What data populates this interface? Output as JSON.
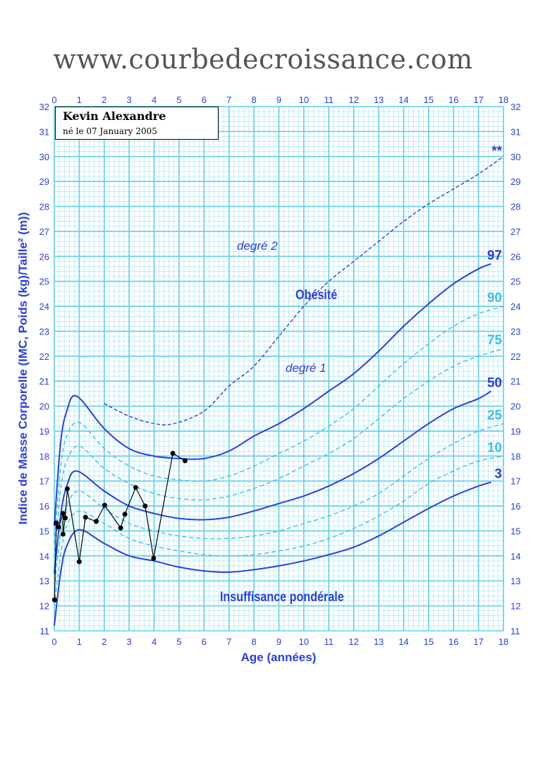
{
  "header": {
    "site": "www.courbedecroissance.com"
  },
  "patient": {
    "name": "Kevin Alexandre",
    "birth": "né le 07 January 2005"
  },
  "colors": {
    "main_curve": "#2a3fe0",
    "dashed_curve": "#3fbde8",
    "grid": "#5fcdee",
    "patient_line": "#000000"
  },
  "chart_data": {
    "type": "line",
    "xlabel": "Age (années)",
    "ylabel": "Indice de Masse Corporelle (IMC, Poids (kg)/Taille² (m))",
    "xlim": [
      0,
      18
    ],
    "ylim": [
      11,
      32
    ],
    "xticks": [
      0,
      1,
      2,
      3,
      4,
      5,
      6,
      7,
      8,
      9,
      10,
      11,
      12,
      13,
      14,
      15,
      16,
      17,
      18
    ],
    "yticks": [
      11,
      12,
      13,
      14,
      15,
      16,
      17,
      18,
      19,
      20,
      21,
      22,
      23,
      24,
      25,
      26,
      27,
      28,
      29,
      30,
      31,
      32
    ],
    "grid": true,
    "annotations": {
      "obesity_2": "degré 2",
      "obesity": "Obésité",
      "obesity_1": "degré 1",
      "underweight": "Insuffisance pondérale"
    },
    "series": [
      {
        "name": "97",
        "style": "solid",
        "x": [
          0,
          0.25,
          0.5,
          0.9,
          2,
          3,
          4,
          5,
          6,
          7,
          8,
          9,
          10,
          11,
          12,
          13,
          14,
          15,
          16,
          17,
          17.5
        ],
        "y": [
          15.2,
          18.5,
          19.8,
          20.4,
          19.1,
          18.3,
          18.0,
          17.9,
          17.9,
          18.2,
          18.8,
          19.3,
          19.9,
          20.6,
          21.3,
          22.2,
          23.2,
          24.1,
          24.9,
          25.5,
          25.7
        ]
      },
      {
        "name": "**",
        "style": "dashed",
        "x": [
          2,
          3,
          4,
          4.8,
          6,
          7,
          8,
          9,
          10,
          11,
          12,
          13,
          14,
          15,
          16,
          17,
          18
        ],
        "y": [
          20.1,
          19.6,
          19.3,
          19.3,
          19.8,
          20.8,
          21.6,
          22.8,
          24.0,
          25.0,
          25.8,
          26.6,
          27.4,
          28.1,
          28.7,
          29.3,
          30.0
        ]
      },
      {
        "name": "90",
        "style": "dashed",
        "x": [
          0,
          0.25,
          0.5,
          1,
          2,
          3,
          4,
          5,
          6,
          7,
          8,
          9,
          10,
          11,
          12,
          13,
          14,
          15,
          16,
          17,
          18
        ],
        "y": [
          14.5,
          17.5,
          18.8,
          19.35,
          18.3,
          17.6,
          17.2,
          17.05,
          17.0,
          17.2,
          17.6,
          18.1,
          18.6,
          19.2,
          19.9,
          20.8,
          21.7,
          22.5,
          23.2,
          23.7,
          24.0
        ]
      },
      {
        "name": "75",
        "style": "dashed",
        "x": [
          0,
          0.25,
          0.5,
          1,
          2,
          3,
          4,
          5,
          6,
          7,
          8,
          9,
          10,
          11,
          12,
          13,
          14,
          15,
          16,
          17,
          18
        ],
        "y": [
          13.9,
          16.6,
          17.8,
          18.4,
          17.5,
          16.9,
          16.5,
          16.3,
          16.25,
          16.4,
          16.7,
          17.1,
          17.6,
          18.1,
          18.7,
          19.5,
          20.3,
          21.0,
          21.6,
          22.0,
          22.3
        ]
      },
      {
        "name": "50",
        "style": "solid",
        "x": [
          0,
          0.25,
          0.5,
          0.9,
          2,
          3,
          4,
          5,
          6,
          7,
          8,
          9,
          10,
          11,
          12,
          13,
          14,
          15,
          16,
          17,
          17.5
        ],
        "y": [
          13.3,
          15.6,
          16.8,
          17.4,
          16.6,
          16.0,
          15.7,
          15.5,
          15.45,
          15.55,
          15.8,
          16.1,
          16.4,
          16.8,
          17.3,
          17.9,
          18.6,
          19.3,
          19.9,
          20.3,
          20.6
        ]
      },
      {
        "name": "25",
        "style": "dashed",
        "x": [
          0,
          0.25,
          0.5,
          1,
          2,
          3,
          4,
          5,
          6,
          7,
          8,
          9,
          10,
          11,
          12,
          13,
          14,
          15,
          16,
          17,
          18
        ],
        "y": [
          12.7,
          14.9,
          16.0,
          16.6,
          15.9,
          15.3,
          15.0,
          14.8,
          14.7,
          14.7,
          14.8,
          15.0,
          15.3,
          15.6,
          16.0,
          16.5,
          17.2,
          17.9,
          18.5,
          19.0,
          19.3
        ]
      },
      {
        "name": "10",
        "style": "dashed",
        "x": [
          0,
          0.25,
          0.5,
          1,
          2,
          3,
          4,
          5,
          6,
          7,
          8,
          9,
          10,
          11,
          12,
          13,
          14,
          15,
          16,
          17,
          18
        ],
        "y": [
          12.0,
          14.0,
          15.2,
          15.8,
          15.3,
          14.7,
          14.4,
          14.2,
          14.05,
          14.0,
          14.05,
          14.2,
          14.4,
          14.7,
          15.1,
          15.6,
          16.2,
          16.9,
          17.4,
          17.8,
          18.0
        ]
      },
      {
        "name": "3",
        "style": "solid",
        "x": [
          0,
          0.25,
          0.5,
          1,
          2,
          3,
          4,
          5,
          6,
          7,
          8,
          9,
          10,
          11,
          12,
          13,
          14,
          15,
          16,
          17,
          17.5
        ],
        "y": [
          11.2,
          13.3,
          14.4,
          15.05,
          14.5,
          14.0,
          13.8,
          13.55,
          13.4,
          13.35,
          13.45,
          13.6,
          13.8,
          14.05,
          14.35,
          14.8,
          15.35,
          15.9,
          16.4,
          16.8,
          16.95
        ]
      }
    ],
    "patient": {
      "x": [
        0.01,
        0.08,
        0.18,
        0.35,
        0.35,
        0.44,
        0.52,
        1.0,
        1.25,
        1.68,
        2.02,
        2.66,
        2.83,
        3.26,
        3.64,
        3.98,
        4.75,
        5.24
      ],
      "y": [
        12.24,
        15.32,
        15.15,
        15.7,
        14.87,
        15.52,
        16.69,
        13.77,
        15.55,
        15.38,
        16.03,
        15.12,
        15.67,
        16.74,
        16.0,
        13.9,
        18.11,
        17.81
      ]
    }
  }
}
